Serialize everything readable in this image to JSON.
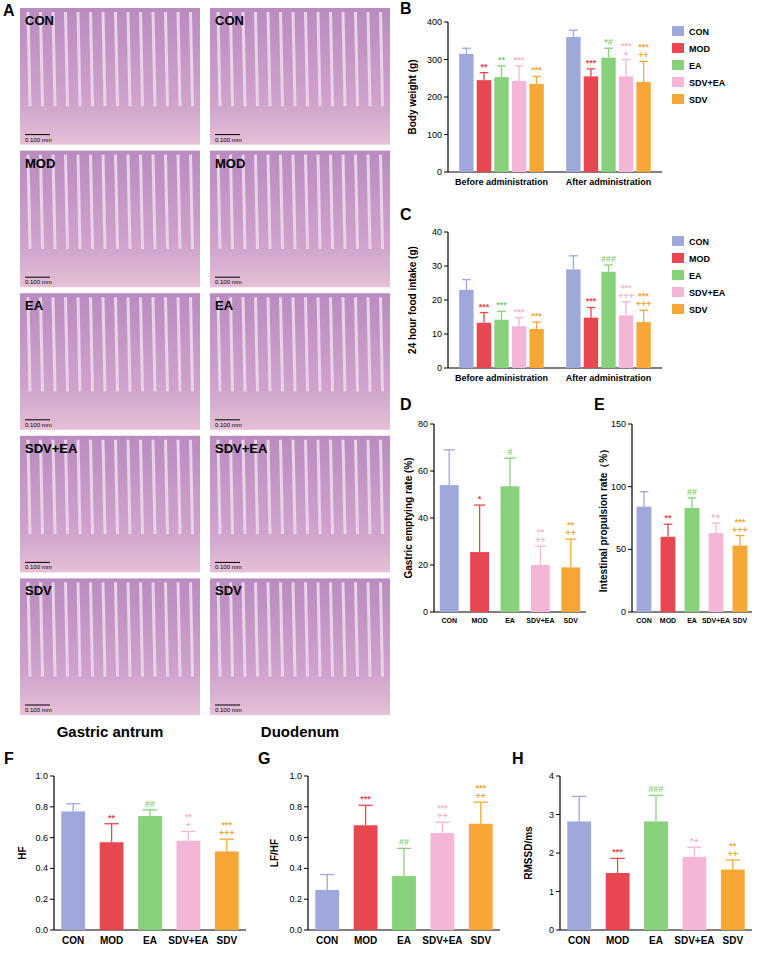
{
  "histology": {
    "panel": "A",
    "rows": [
      "CON",
      "MOD",
      "EA",
      "SDV+EA",
      "SDV"
    ],
    "columns": [
      "Gastric antrum",
      "Duodenum"
    ],
    "scale_bar": "0.100 mm"
  },
  "chart_data": [
    {
      "type": "bar",
      "panel": "B",
      "y_label": "Body weight (g)",
      "categories": [
        "Before administration",
        "After administration"
      ],
      "ylim": [
        0,
        400
      ],
      "yticks": [
        0,
        100,
        200,
        300,
        400
      ],
      "legend": "right",
      "series": [
        {
          "name": "CON",
          "color": "#9fa8da",
          "values": [
            315,
            360
          ],
          "errors": [
            15,
            18
          ],
          "annotations": [
            null,
            null
          ]
        },
        {
          "name": "MOD",
          "color": "#e8474f",
          "values": [
            245,
            255
          ],
          "errors": [
            20,
            20
          ],
          "annotations": [
            "**",
            "***"
          ]
        },
        {
          "name": "EA",
          "color": "#86d17a",
          "values": [
            253,
            305
          ],
          "errors": [
            30,
            25
          ],
          "annotations": [
            "**",
            "*#"
          ]
        },
        {
          "name": "SDV+EA",
          "color": "#f4b6d6",
          "values": [
            243,
            255
          ],
          "errors": [
            40,
            45
          ],
          "annotations": [
            "***",
            [
              "***",
              "+"
            ]
          ]
        },
        {
          "name": "SDV",
          "color": "#f7a736",
          "values": [
            235,
            240
          ],
          "errors": [
            20,
            55
          ],
          "annotations": [
            "***",
            [
              "***",
              "++"
            ]
          ]
        }
      ]
    },
    {
      "type": "bar",
      "panel": "C",
      "y_label": "24 hour food intake (g)",
      "categories": [
        "Before administration",
        "After administration"
      ],
      "ylim": [
        0,
        40
      ],
      "yticks": [
        0,
        10,
        20,
        30,
        40
      ],
      "legend": "right",
      "series": [
        {
          "name": "CON",
          "color": "#9fa8da",
          "values": [
            23,
            29
          ],
          "errors": [
            3,
            4
          ],
          "annotations": [
            null,
            null
          ]
        },
        {
          "name": "MOD",
          "color": "#e8474f",
          "values": [
            13.3,
            14.8
          ],
          "errors": [
            3,
            3
          ],
          "annotations": [
            "***",
            "***"
          ]
        },
        {
          "name": "EA",
          "color": "#86d17a",
          "values": [
            14.2,
            28.3
          ],
          "errors": [
            2.5,
            2
          ],
          "annotations": [
            "***",
            "###"
          ]
        },
        {
          "name": "SDV+EA",
          "color": "#f4b6d6",
          "values": [
            12.3,
            15.5
          ],
          "errors": [
            2.5,
            4
          ],
          "annotations": [
            "***",
            [
              "***",
              "+++"
            ]
          ]
        },
        {
          "name": "SDV",
          "color": "#f7a736",
          "values": [
            11.5,
            13.5
          ],
          "errors": [
            2,
            3.5
          ],
          "annotations": [
            "***",
            [
              "***",
              "+++"
            ]
          ]
        }
      ]
    },
    {
      "type": "bar",
      "panel": "D",
      "y_label": "Gastric emptying rate (%)",
      "categories": [
        "CON",
        "MOD",
        "EA",
        "SDV+EA",
        "SDV"
      ],
      "colors": [
        "#9fa8da",
        "#e8474f",
        "#86d17a",
        "#f4b6d6",
        "#f7a736"
      ],
      "values": [
        54,
        25.5,
        53.5,
        20,
        19
      ],
      "errors": [
        15,
        20,
        12,
        8,
        12
      ],
      "annotations": [
        null,
        "*",
        "#",
        [
          "**",
          "++"
        ],
        [
          "**",
          "++"
        ]
      ],
      "ylim": [
        0,
        80
      ],
      "yticks": [
        0,
        20,
        40,
        60,
        80
      ]
    },
    {
      "type": "bar",
      "panel": "E",
      "y_label": "Intestinal propulsion rate（%）",
      "categories": [
        "CON",
        "MOD",
        "EA",
        "SDV+EA",
        "SDV"
      ],
      "colors": [
        "#9fa8da",
        "#e8474f",
        "#86d17a",
        "#f4b6d6",
        "#f7a736"
      ],
      "values": [
        84,
        60,
        83,
        63,
        53
      ],
      "errors": [
        12,
        10,
        8,
        8,
        8
      ],
      "annotations": [
        null,
        "**",
        "##",
        "*+",
        [
          "***",
          "+++"
        ]
      ],
      "ylim": [
        0,
        150
      ],
      "yticks": [
        0,
        50,
        100,
        150
      ]
    },
    {
      "type": "bar",
      "panel": "F",
      "y_label": "HF",
      "categories": [
        "CON",
        "MOD",
        "EA",
        "SDV+EA",
        "SDV"
      ],
      "colors": [
        "#9fa8da",
        "#e8474f",
        "#86d17a",
        "#f4b6d6",
        "#f7a736"
      ],
      "values": [
        0.77,
        0.57,
        0.74,
        0.58,
        0.51
      ],
      "errors": [
        0.05,
        0.12,
        0.04,
        0.06,
        0.08
      ],
      "annotations": [
        null,
        "**",
        "##",
        [
          "**",
          "+"
        ],
        [
          "***",
          "+++"
        ]
      ],
      "ylim": [
        0,
        1
      ],
      "yticks": [
        {
          "value": 0,
          "label": "0.0"
        },
        0.2,
        0.4,
        0.6,
        0.8,
        {
          "value": 1,
          "label": "1.0"
        }
      ]
    },
    {
      "type": "bar",
      "panel": "G",
      "y_label": "LF/HF",
      "categories": [
        "CON",
        "MOD",
        "EA",
        "SDV+EA",
        "SDV"
      ],
      "colors": [
        "#9fa8da",
        "#e8474f",
        "#86d17a",
        "#f4b6d6",
        "#f7a736"
      ],
      "values": [
        0.26,
        0.68,
        0.35,
        0.63,
        0.69
      ],
      "errors": [
        0.1,
        0.13,
        0.18,
        0.07,
        0.14
      ],
      "annotations": [
        null,
        "***",
        "##",
        [
          "***",
          "++"
        ],
        [
          "***",
          "++"
        ]
      ],
      "ylim": [
        0,
        1
      ],
      "yticks": [
        {
          "value": 0,
          "label": "0.0"
        },
        0.2,
        0.4,
        0.6,
        0.8,
        {
          "value": 1,
          "label": "1.0"
        }
      ]
    },
    {
      "type": "bar",
      "panel": "H",
      "y_label": "RMSSD/ms",
      "categories": [
        "CON",
        "MOD",
        "EA",
        "SDV+EA",
        "SDV"
      ],
      "colors": [
        "#9fa8da",
        "#e8474f",
        "#86d17a",
        "#f4b6d6",
        "#f7a736"
      ],
      "values": [
        2.82,
        1.48,
        2.82,
        1.9,
        1.57
      ],
      "errors": [
        0.65,
        0.38,
        0.68,
        0.25,
        0.25
      ],
      "annotations": [
        null,
        "***",
        "###",
        "*+",
        [
          "**",
          "++"
        ]
      ],
      "ylim": [
        0,
        4
      ],
      "yticks": [
        0,
        1,
        2,
        3,
        4
      ]
    }
  ]
}
